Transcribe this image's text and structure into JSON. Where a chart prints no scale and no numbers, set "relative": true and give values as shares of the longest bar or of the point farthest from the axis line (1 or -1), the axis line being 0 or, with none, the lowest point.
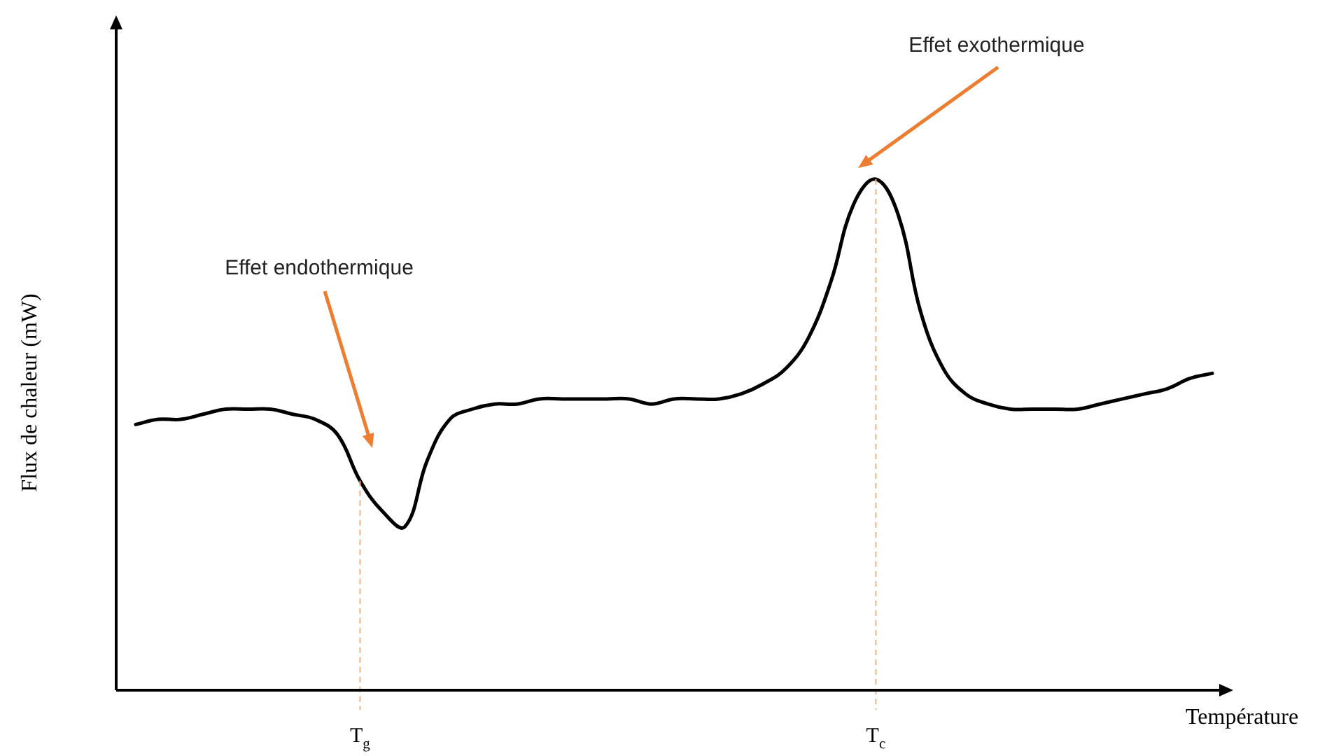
{
  "chart_data": {
    "type": "line",
    "relative": true,
    "xlabel": "Température",
    "ylabel": "Flux de chaleur (mW)",
    "categories": [
      null,
      null,
      null,
      null,
      null,
      null,
      null,
      null,
      null,
      null,
      "T$_{g}$",
      null,
      null,
      null,
      null,
      null,
      null,
      null,
      null,
      null,
      null,
      null,
      null,
      null,
      null,
      null,
      null,
      null,
      null,
      null,
      null,
      null,
      null,
      "T$_{c}$",
      null,
      null,
      null,
      null,
      null,
      null,
      null,
      null,
      null,
      null,
      null,
      null,
      null,
      null,
      null
    ],
    "series": [
      {
        "color": "#000000",
        "values": [
          0.52,
          0.53,
          0.53,
          0.54,
          0.55,
          0.55,
          0.55,
          0.54,
          0.53,
          0.5,
          0.41,
          0.35,
          0.32,
          0.45,
          0.53,
          0.55,
          0.56,
          0.56,
          0.57,
          0.57,
          0.57,
          0.57,
          0.57,
          0.56,
          0.57,
          0.57,
          0.57,
          0.58,
          0.6,
          0.63,
          0.69,
          0.8,
          0.95,
          1,
          0.93,
          0.74,
          0.63,
          0.58,
          0.56,
          0.55,
          0.55,
          0.55,
          0.55,
          0.56,
          0.57,
          0.58,
          0.59,
          0.61,
          0.62
        ]
      }
    ],
    "ref_lines": [
      {
        "axis": "x",
        "value": "T$_{g}$",
        "color": "#f4b183",
        "line_style": "dashed"
      },
      {
        "axis": "x",
        "value": "T$_{c}$",
        "color": "#f4b183",
        "line_style": "dashed"
      }
    ],
    "annotations": [
      "Effet endothermique",
      "Effet exothermique"
    ]
  }
}
